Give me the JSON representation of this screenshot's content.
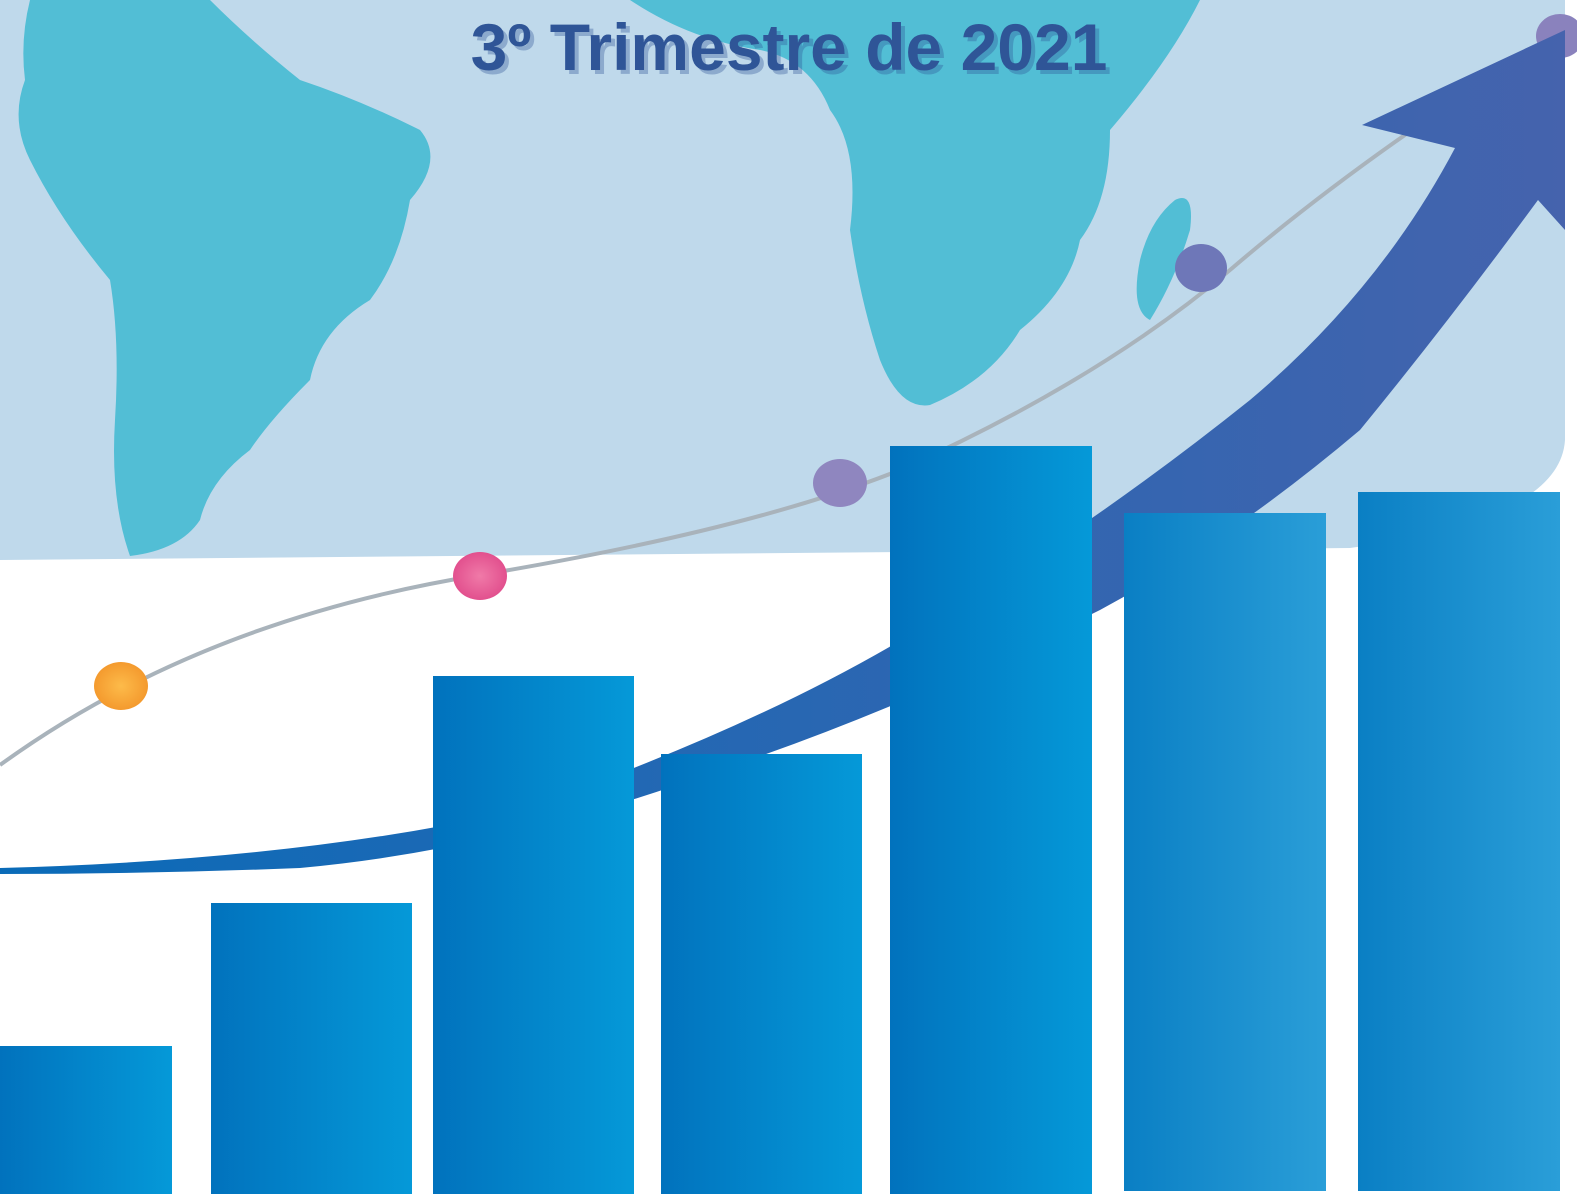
{
  "header": {
    "title": "3º Trimestre de 2021"
  }
}
